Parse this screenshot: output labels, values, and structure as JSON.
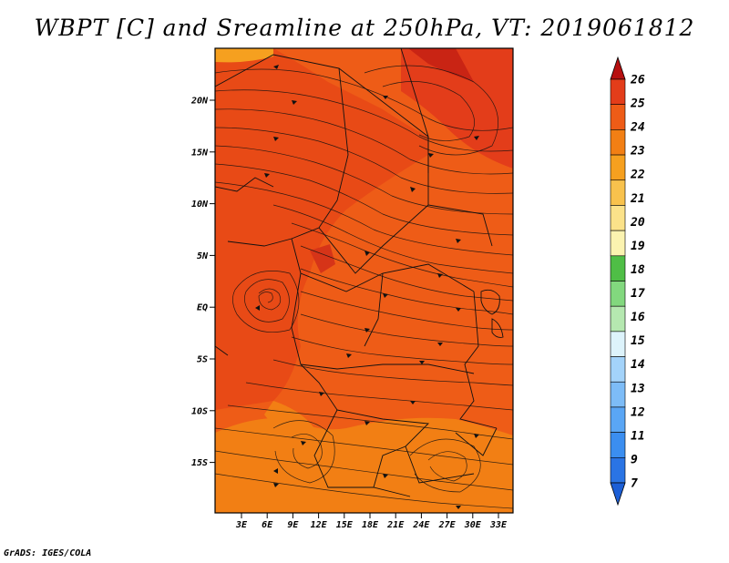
{
  "title": "WBPT [C] and Sreamline at 250hPa, VT: 2019061812",
  "credit": "GrADS: IGES/COLA",
  "lat_ticks": [
    "20N",
    "15N",
    "10N",
    "5N",
    "EQ",
    "5S",
    "10S",
    "15S"
  ],
  "lon_ticks": [
    "3E",
    "6E",
    "9E",
    "12E",
    "15E",
    "18E",
    "21E",
    "24E",
    "27E",
    "30E",
    "33E"
  ],
  "colorbar": {
    "labels": [
      "7",
      "9",
      "11",
      "12",
      "13",
      "14",
      "15",
      "16",
      "17",
      "18",
      "19",
      "20",
      "21",
      "22",
      "23",
      "24",
      "25",
      "26"
    ],
    "colors": [
      "#1c5fd6",
      "#2a74e4",
      "#3b8ef0",
      "#5aa6f5",
      "#7dbcf7",
      "#a3d3fa",
      "#ddf3fb",
      "#b5e8b0",
      "#82d87e",
      "#4fbe46",
      "#fbf3b0",
      "#fbe28a",
      "#f8c24d",
      "#f6a01f",
      "#f27f14",
      "#ee5c17",
      "#e33d1a",
      "#b71010"
    ]
  }
}
